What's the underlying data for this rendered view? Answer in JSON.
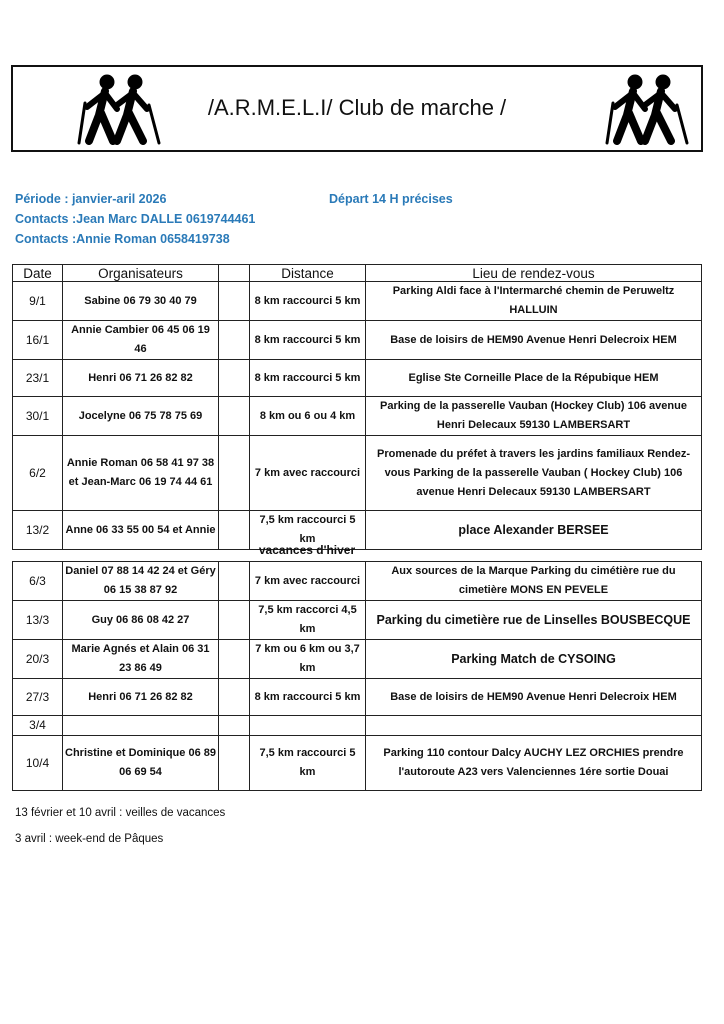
{
  "header": {
    "title": "/A.R.M.E.L.I/ Club de marche /"
  },
  "info": {
    "periode": "Période : janvier-aril 2026",
    "contact1": "Contacts :Jean Marc DALLE 0619744461",
    "contact2": "Contacts :Annie Roman 0658419738",
    "depart": "Départ 14 H précises"
  },
  "table": {
    "columns": [
      "Date",
      "Organisateurs",
      "",
      "Distance",
      "Lieu de rendez-vous"
    ],
    "rows": [
      {
        "date": "9/1",
        "org": "Sabine  06 79 30 40 79",
        "distance": "8 km raccourci 5 km",
        "lieu": "Parking Aldi face à l'Intermarché chemin de Peruweltz HALLUIN"
      },
      {
        "date": "16/1",
        "org": "Annie Cambier            06 45 06 19 46",
        "distance": "8 km raccourci 5 km",
        "lieu": "Base de loisirs de HEM90 Avenue Henri  Delecroix HEM"
      },
      {
        "date": "23/1",
        "org": "Henri 06 71 26 82 82",
        "distance": "8 km raccourci 5 km",
        "lieu": "Eglise Ste Corneille Place de la Répubique HEM"
      },
      {
        "date": "30/1",
        "org": "Jocelyne  06 75 78 75 69",
        "distance": "8 km ou 6 ou 4 km",
        "lieu": "Parking de la passerelle Vauban (Hockey Club)   106 avenue Henri Delecaux 59130 LAMBERSART"
      },
      {
        "date": "6/2",
        "org": "Annie Roman 06 58 41 97 38  et  Jean-Marc           06 19 74 44 61",
        "distance": "7 km avec raccourci",
        "lieu": "Promenade du préfet à travers les jardins familiaux Rendez-vous  Parking de la passerelle Vauban ( Hockey Club)  106 avenue Henri Delecaux  59130 LAMBERSART"
      },
      {
        "date": "13/2",
        "org": "Anne 06 33 55 00 54 et Annie",
        "distance": "7,5 km raccourci 5 km",
        "lieu": "place Alexander BERSEE"
      }
    ],
    "break_label": "vacances d'hiver",
    "rows2": [
      {
        "date": "6/3",
        "org": "Daniel 07 88 14 42 24 et Géry 06 15 38 87 92",
        "distance": "7 km avec raccourci",
        "lieu": "Aux sources de la Marque    Parking du cimétière rue du cimetière    MONS EN PEVELE"
      },
      {
        "date": "13/3",
        "org": "Guy 06 86 08 42 27",
        "distance": "7,5 km raccorci 4,5 km",
        "lieu": "Parking du cimetière rue de Linselles BOUSBECQUE"
      },
      {
        "date": "20/3",
        "org": "Marie Agnés et Alain 06 31 23 86 49",
        "distance": "7 km ou 6 km ou 3,7 km",
        "lieu": "Parking Match de CYSOING"
      },
      {
        "date": "27/3",
        "org": "Henri 06 71 26 82 82",
        "distance": "8 km raccourci 5 km",
        "lieu": "Base de loisirs de HEM90 Avenue Henri  Delecroix HEM"
      },
      {
        "date": "3/4",
        "org": "",
        "distance": "",
        "lieu": ""
      },
      {
        "date": "10/4",
        "org": "Christine et Dominique 06 89 06 69 54",
        "distance": "7,5 km raccourci 5 km",
        "lieu": "Parking 110 contour Dalcy AUCHY LEZ ORCHIES    prendre l'autoroute A23 vers Valenciennes 1ére sortie Douai"
      }
    ]
  },
  "notes": [
    "13 février et 10 avril : veilles de vacances",
    "3 avril : week-end de Pâques"
  ],
  "colors": {
    "accent": "#2a7ab8"
  }
}
